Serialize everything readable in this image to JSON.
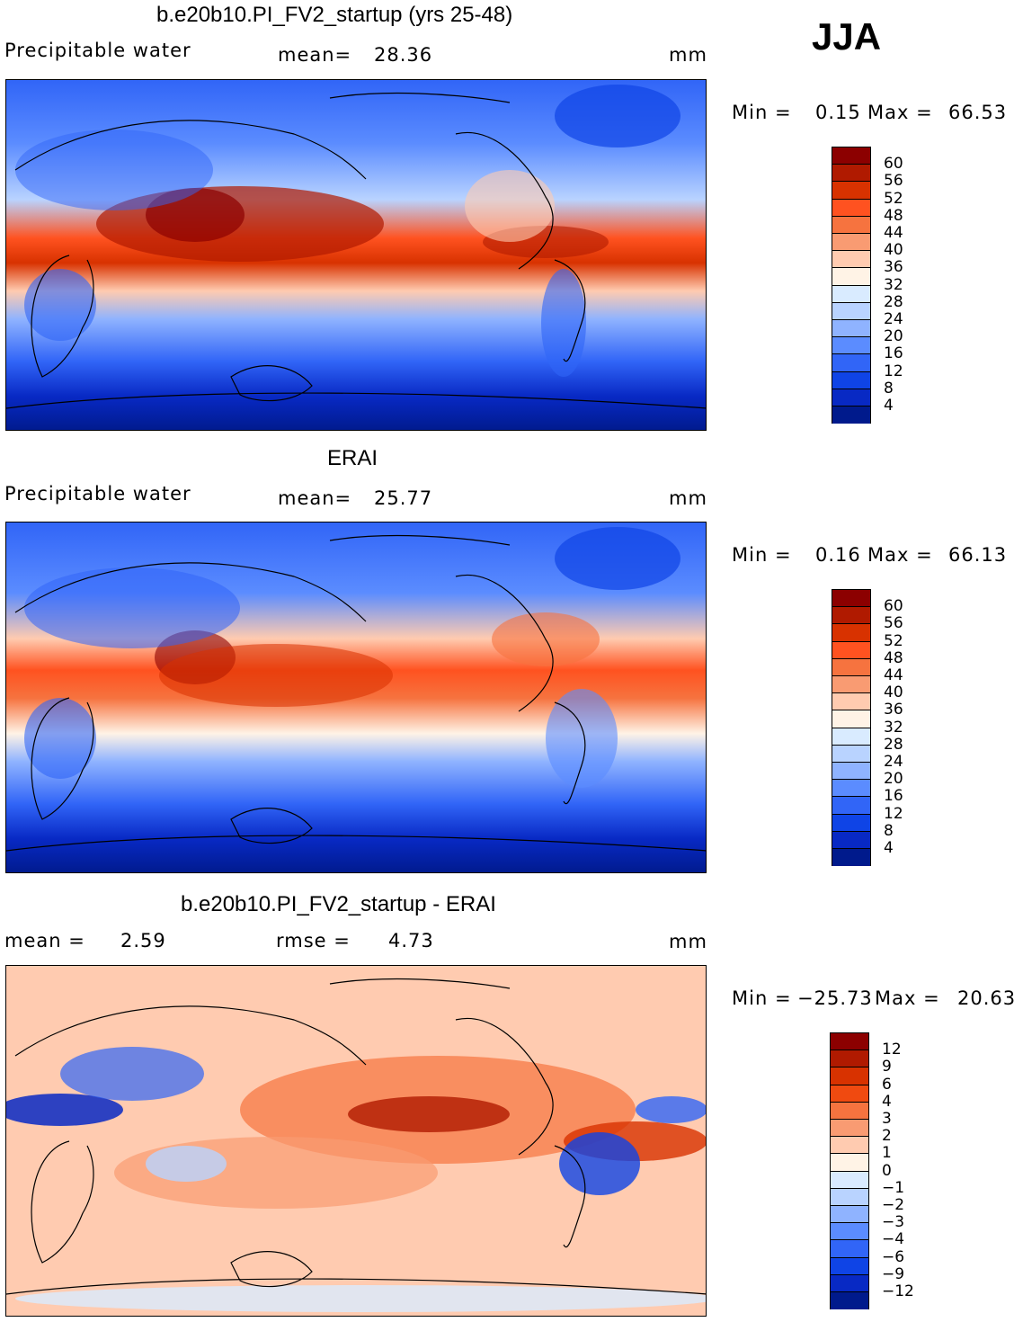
{
  "season": "JJA",
  "panels": [
    {
      "title": "b.e20b10.PI_FV2_startup (yrs 25-48)",
      "field_label": "Precipitable water",
      "stat_label": "mean=",
      "stat_value": "28.36",
      "units": "mm",
      "min_label": "Min =",
      "min_value": "0.15",
      "max_label": "Max =",
      "max_value": "66.53"
    },
    {
      "title": "ERAI",
      "field_label": "Precipitable water",
      "stat_label": "mean=",
      "stat_value": "25.77",
      "units": "mm",
      "min_label": "Min =",
      "min_value": "0.16",
      "max_label": "Max =",
      "max_value": "66.13"
    },
    {
      "title": "b.e20b10.PI_FV2_startup - ERAI",
      "mean_label": "mean =",
      "mean_value": "2.59",
      "rmse_label": "rmse =",
      "rmse_value": "4.73",
      "units": "mm",
      "min_label": "Min =",
      "min_value": "−25.73",
      "max_label": "Max =",
      "max_value": "20.63"
    }
  ],
  "colorbars": {
    "abs": {
      "labels": [
        "60",
        "56",
        "52",
        "48",
        "44",
        "40",
        "36",
        "32",
        "28",
        "24",
        "20",
        "16",
        "12",
        "8",
        "4"
      ],
      "colors": [
        "#8c0000",
        "#b01a00",
        "#d83200",
        "#ff5220",
        "#f6733f",
        "#f99b72",
        "#ffcbb0",
        "#fff3e6",
        "#d9ebff",
        "#b9d3ff",
        "#8fb3ff",
        "#5b8cff",
        "#3165f7",
        "#0f44e6",
        "#0829c4",
        "#001a8c"
      ]
    },
    "diff": {
      "labels": [
        "12",
        "9",
        "6",
        "4",
        "3",
        "2",
        "1",
        "0",
        "−1",
        "−2",
        "−3",
        "−4",
        "−6",
        "−9",
        "−12"
      ],
      "colors": [
        "#8c0000",
        "#b01a00",
        "#d83200",
        "#f04a10",
        "#f6733f",
        "#f99b72",
        "#ffcbb0",
        "#fff3e6",
        "#d9ebff",
        "#b9d3ff",
        "#8fb3ff",
        "#5b8cff",
        "#3165f7",
        "#0f44e6",
        "#0829c4",
        "#001a8c"
      ]
    }
  }
}
